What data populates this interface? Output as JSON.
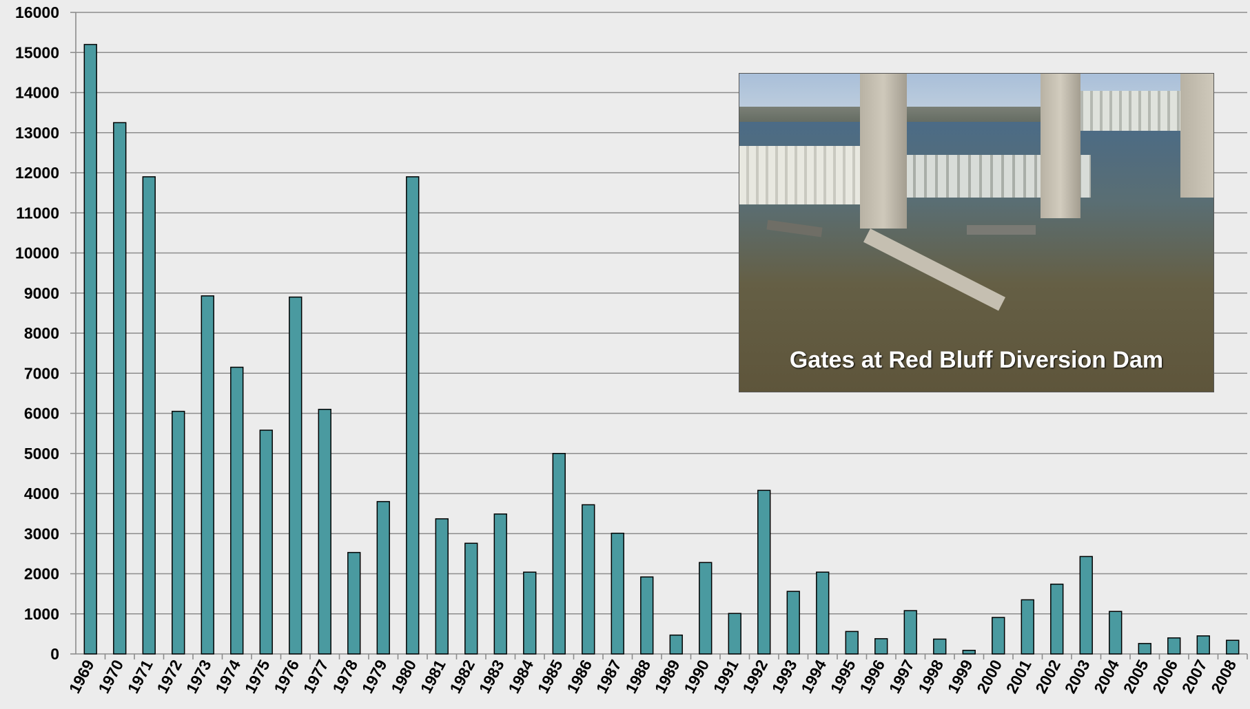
{
  "chart_data": {
    "type": "bar",
    "title": "",
    "xlabel": "",
    "ylabel": "",
    "ylim": [
      0,
      16000
    ],
    "yticks": [
      0,
      1000,
      2000,
      3000,
      4000,
      5000,
      6000,
      7000,
      8000,
      9000,
      10000,
      11000,
      12000,
      13000,
      14000,
      15000,
      16000
    ],
    "grid": true,
    "legend": "none",
    "bar_color": "#4a9aa0",
    "categories": [
      "1969",
      "1970",
      "1971",
      "1972",
      "1973",
      "1974",
      "1975",
      "1976",
      "1977",
      "1978",
      "1979",
      "1980",
      "1981",
      "1982",
      "1983",
      "1984",
      "1985",
      "1986",
      "1987",
      "1988",
      "1989",
      "1990",
      "1991",
      "1992",
      "1993",
      "1994",
      "1995",
      "1996",
      "1997",
      "1998",
      "1999",
      "2000",
      "2001",
      "2002",
      "2003",
      "2004",
      "2005",
      "2006",
      "2007",
      "2008"
    ],
    "values": [
      15200,
      13250,
      11900,
      6050,
      8930,
      7150,
      5580,
      8900,
      6100,
      2530,
      3800,
      11900,
      3370,
      2760,
      3490,
      2040,
      5000,
      3720,
      3010,
      1920,
      470,
      2280,
      1010,
      4080,
      1560,
      2040,
      560,
      380,
      1080,
      370,
      90,
      910,
      1350,
      1740,
      2430,
      1060,
      260,
      400,
      450,
      340
    ]
  },
  "inset": {
    "caption": "Gates at Red Bluff Diversion Dam",
    "image_description_icon": "dam-photo"
  }
}
